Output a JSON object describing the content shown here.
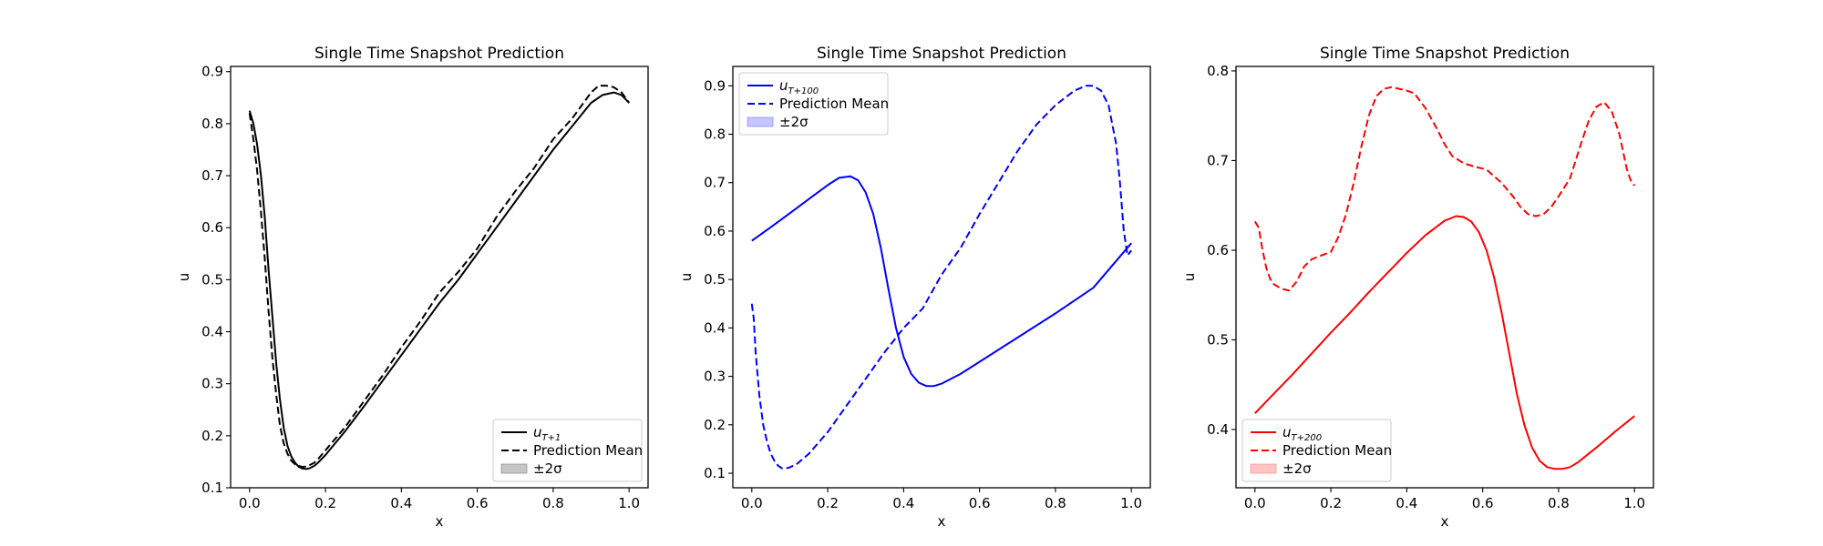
{
  "chart_data": [
    {
      "type": "line",
      "title": "Single Time Snapshot Prediction",
      "xlabel": "x",
      "ylabel": "u",
      "xlim": [
        -0.05,
        1.05
      ],
      "ylim": [
        0.1,
        0.91
      ],
      "xticks": [
        "0.0",
        "0.2",
        "0.4",
        "0.6",
        "0.8",
        "1.0"
      ],
      "yticks": [
        "0.1",
        "0.2",
        "0.3",
        "0.4",
        "0.5",
        "0.6",
        "0.7",
        "0.8",
        "0.9"
      ],
      "legend_position": "lower-right",
      "color": "#000000",
      "band_color": "#7f7f7f",
      "legend": {
        "truth_base": "u",
        "truth_sub": "T+1",
        "mean": "Prediction Mean",
        "band": "±2σ"
      },
      "series": [
        {
          "role": "truth",
          "x": [
            0.0,
            0.01,
            0.02,
            0.03,
            0.04,
            0.05,
            0.06,
            0.07,
            0.08,
            0.09,
            0.1,
            0.11,
            0.12,
            0.13,
            0.14,
            0.15,
            0.16,
            0.17,
            0.18,
            0.2,
            0.25,
            0.3,
            0.35,
            0.4,
            0.45,
            0.5,
            0.55,
            0.6,
            0.65,
            0.7,
            0.75,
            0.8,
            0.85,
            0.9,
            0.93,
            0.96,
            0.98,
            1.0
          ],
          "y": [
            0.825,
            0.8,
            0.76,
            0.7,
            0.62,
            0.52,
            0.43,
            0.34,
            0.27,
            0.215,
            0.18,
            0.16,
            0.148,
            0.14,
            0.137,
            0.136,
            0.138,
            0.142,
            0.148,
            0.163,
            0.207,
            0.255,
            0.305,
            0.355,
            0.405,
            0.455,
            0.5,
            0.55,
            0.6,
            0.65,
            0.7,
            0.75,
            0.795,
            0.84,
            0.855,
            0.86,
            0.855,
            0.84
          ]
        },
        {
          "role": "mean",
          "x": [
            0.0,
            0.01,
            0.02,
            0.03,
            0.04,
            0.05,
            0.06,
            0.07,
            0.08,
            0.09,
            0.1,
            0.11,
            0.12,
            0.13,
            0.14,
            0.15,
            0.16,
            0.17,
            0.18,
            0.2,
            0.25,
            0.3,
            0.35,
            0.4,
            0.45,
            0.5,
            0.55,
            0.6,
            0.65,
            0.7,
            0.75,
            0.8,
            0.85,
            0.88,
            0.9,
            0.92,
            0.94,
            0.96,
            0.98,
            1.0
          ],
          "y": [
            0.82,
            0.77,
            0.71,
            0.63,
            0.54,
            0.44,
            0.35,
            0.28,
            0.22,
            0.185,
            0.165,
            0.152,
            0.145,
            0.142,
            0.14,
            0.141,
            0.144,
            0.148,
            0.155,
            0.172,
            0.215,
            0.265,
            0.315,
            0.37,
            0.42,
            0.475,
            0.515,
            0.56,
            0.62,
            0.67,
            0.715,
            0.77,
            0.81,
            0.84,
            0.86,
            0.873,
            0.873,
            0.87,
            0.86,
            0.84
          ]
        }
      ]
    },
    {
      "type": "line",
      "title": "Single Time Snapshot Prediction",
      "xlabel": "x",
      "ylabel": "u",
      "xlim": [
        -0.05,
        1.05
      ],
      "ylim": [
        0.07,
        0.94
      ],
      "xticks": [
        "0.0",
        "0.2",
        "0.4",
        "0.6",
        "0.8",
        "1.0"
      ],
      "yticks": [
        "0.1",
        "0.2",
        "0.3",
        "0.4",
        "0.5",
        "0.6",
        "0.7",
        "0.8",
        "0.9"
      ],
      "legend_position": "upper-left",
      "color": "#0000ff",
      "band_color": "#7f7fff",
      "legend": {
        "truth_base": "u",
        "truth_sub": "T+100",
        "mean": "Prediction Mean",
        "band": "±2σ"
      },
      "series": [
        {
          "role": "truth",
          "x": [
            0.0,
            0.05,
            0.1,
            0.15,
            0.2,
            0.23,
            0.26,
            0.28,
            0.3,
            0.32,
            0.34,
            0.36,
            0.38,
            0.4,
            0.42,
            0.44,
            0.46,
            0.48,
            0.5,
            0.55,
            0.6,
            0.7,
            0.8,
            0.9,
            1.0
          ],
          "y": [
            0.58,
            0.608,
            0.637,
            0.666,
            0.695,
            0.71,
            0.713,
            0.705,
            0.68,
            0.635,
            0.565,
            0.48,
            0.4,
            0.34,
            0.305,
            0.287,
            0.28,
            0.28,
            0.285,
            0.305,
            0.33,
            0.38,
            0.43,
            0.483,
            0.575
          ]
        },
        {
          "role": "mean",
          "x": [
            0.0,
            0.005,
            0.01,
            0.02,
            0.03,
            0.04,
            0.05,
            0.06,
            0.07,
            0.08,
            0.09,
            0.1,
            0.12,
            0.15,
            0.2,
            0.25,
            0.3,
            0.35,
            0.4,
            0.45,
            0.5,
            0.55,
            0.6,
            0.65,
            0.7,
            0.75,
            0.8,
            0.85,
            0.88,
            0.9,
            0.92,
            0.94,
            0.96,
            0.97,
            0.98,
            0.99,
            1.0
          ],
          "y": [
            0.45,
            0.42,
            0.35,
            0.26,
            0.2,
            0.165,
            0.14,
            0.125,
            0.115,
            0.11,
            0.11,
            0.112,
            0.12,
            0.14,
            0.185,
            0.24,
            0.295,
            0.35,
            0.4,
            0.44,
            0.51,
            0.565,
            0.635,
            0.7,
            0.765,
            0.82,
            0.86,
            0.89,
            0.9,
            0.9,
            0.89,
            0.86,
            0.78,
            0.7,
            0.6,
            0.55,
            0.56
          ]
        }
      ]
    },
    {
      "type": "line",
      "title": "Single Time Snapshot Prediction",
      "xlabel": "x",
      "ylabel": "u",
      "xlim": [
        -0.05,
        1.05
      ],
      "ylim": [
        0.335,
        0.805
      ],
      "xticks": [
        "0.0",
        "0.2",
        "0.4",
        "0.6",
        "0.8",
        "1.0"
      ],
      "yticks": [
        "0.4",
        "0.5",
        "0.6",
        "0.7",
        "0.8"
      ],
      "legend_position": "lower-left",
      "color": "#ff0000",
      "band_color": "#ff7f7f",
      "legend": {
        "truth_base": "u",
        "truth_sub": "T+200",
        "mean": "Prediction Mean",
        "band": "±2σ"
      },
      "series": [
        {
          "role": "truth",
          "x": [
            0.0,
            0.05,
            0.1,
            0.15,
            0.2,
            0.25,
            0.3,
            0.35,
            0.4,
            0.45,
            0.5,
            0.53,
            0.55,
            0.57,
            0.59,
            0.61,
            0.63,
            0.65,
            0.67,
            0.69,
            0.71,
            0.73,
            0.75,
            0.77,
            0.79,
            0.81,
            0.83,
            0.85,
            0.9,
            0.95,
            1.0
          ],
          "y": [
            0.418,
            0.44,
            0.462,
            0.485,
            0.508,
            0.53,
            0.553,
            0.575,
            0.597,
            0.617,
            0.633,
            0.638,
            0.637,
            0.632,
            0.62,
            0.6,
            0.57,
            0.53,
            0.485,
            0.44,
            0.405,
            0.38,
            0.365,
            0.358,
            0.356,
            0.356,
            0.358,
            0.363,
            0.38,
            0.398,
            0.415
          ]
        },
        {
          "role": "mean",
          "x": [
            0.0,
            0.01,
            0.02,
            0.03,
            0.04,
            0.05,
            0.07,
            0.09,
            0.11,
            0.13,
            0.15,
            0.18,
            0.2,
            0.22,
            0.24,
            0.26,
            0.28,
            0.3,
            0.32,
            0.34,
            0.36,
            0.38,
            0.4,
            0.42,
            0.45,
            0.48,
            0.5,
            0.52,
            0.55,
            0.58,
            0.61,
            0.65,
            0.68,
            0.7,
            0.72,
            0.74,
            0.76,
            0.78,
            0.8,
            0.83,
            0.86,
            0.88,
            0.9,
            0.92,
            0.94,
            0.96,
            0.97,
            0.98,
            0.99,
            1.0
          ],
          "y": [
            0.632,
            0.625,
            0.6,
            0.58,
            0.568,
            0.562,
            0.557,
            0.555,
            0.565,
            0.582,
            0.59,
            0.595,
            0.598,
            0.615,
            0.64,
            0.675,
            0.715,
            0.75,
            0.772,
            0.78,
            0.782,
            0.78,
            0.778,
            0.775,
            0.758,
            0.735,
            0.718,
            0.705,
            0.697,
            0.693,
            0.69,
            0.675,
            0.66,
            0.648,
            0.64,
            0.638,
            0.64,
            0.648,
            0.66,
            0.68,
            0.72,
            0.745,
            0.76,
            0.765,
            0.755,
            0.73,
            0.71,
            0.69,
            0.678,
            0.672
          ]
        }
      ]
    }
  ]
}
